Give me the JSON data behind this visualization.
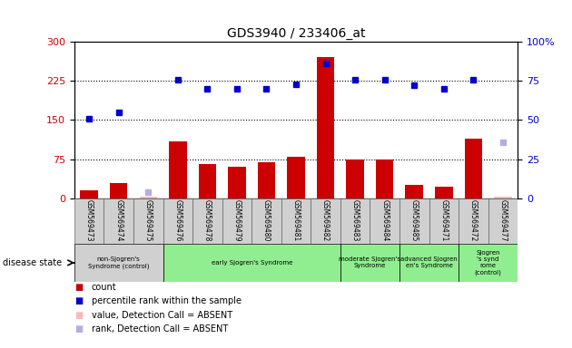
{
  "title": "GDS3940 / 233406_at",
  "samples": [
    "GSM569473",
    "GSM569474",
    "GSM569475",
    "GSM569476",
    "GSM569478",
    "GSM569479",
    "GSM569480",
    "GSM569481",
    "GSM569482",
    "GSM569483",
    "GSM569484",
    "GSM569485",
    "GSM569471",
    "GSM569472",
    "GSM569477"
  ],
  "bar_values": [
    15,
    30,
    0,
    110,
    65,
    60,
    70,
    80,
    270,
    75,
    75,
    25,
    22,
    115,
    0
  ],
  "bar_absent": [
    false,
    false,
    true,
    false,
    false,
    false,
    false,
    false,
    false,
    false,
    false,
    false,
    false,
    false,
    true
  ],
  "dot_values": [
    51,
    55,
    0,
    76,
    70,
    70,
    70,
    73,
    86,
    76,
    76,
    72,
    70,
    76,
    0
  ],
  "rank_absent_vals": [
    0,
    0,
    4,
    0,
    0,
    0,
    0,
    0,
    0,
    0,
    0,
    0,
    0,
    0,
    36
  ],
  "rank_absent": [
    false,
    false,
    true,
    false,
    false,
    false,
    false,
    false,
    false,
    false,
    false,
    false,
    false,
    false,
    true
  ],
  "absent_bar_vals": [
    0,
    0,
    3,
    0,
    0,
    0,
    0,
    0,
    0,
    0,
    0,
    0,
    0,
    0,
    3
  ],
  "groups": [
    {
      "label": "non-Sjogren's\nSyndrome (control)",
      "start": 0,
      "end": 2,
      "color": "#d0d0d0"
    },
    {
      "label": "early Sjogren's Syndrome",
      "start": 3,
      "end": 8,
      "color": "#90ee90"
    },
    {
      "label": "moderate Sjogren's\nSyndrome",
      "start": 9,
      "end": 10,
      "color": "#90ee90"
    },
    {
      "label": "advanced Sjogren\nen's Syndrome",
      "start": 11,
      "end": 12,
      "color": "#90ee90"
    },
    {
      "label": "Sjogren\n's synd\nrome\n(control)",
      "start": 13,
      "end": 14,
      "color": "#90ee90"
    }
  ],
  "ylim_left": [
    0,
    300
  ],
  "yticks_left": [
    0,
    75,
    150,
    225,
    300
  ],
  "yticks_right": [
    0,
    25,
    50,
    75,
    100
  ],
  "bar_color": "#cc0000",
  "bar_absent_color": "#ffb6c1",
  "dot_color": "#0000cc",
  "dot_absent_color": "#b0b0ff",
  "rank_absent_color": "#b0b0e0"
}
